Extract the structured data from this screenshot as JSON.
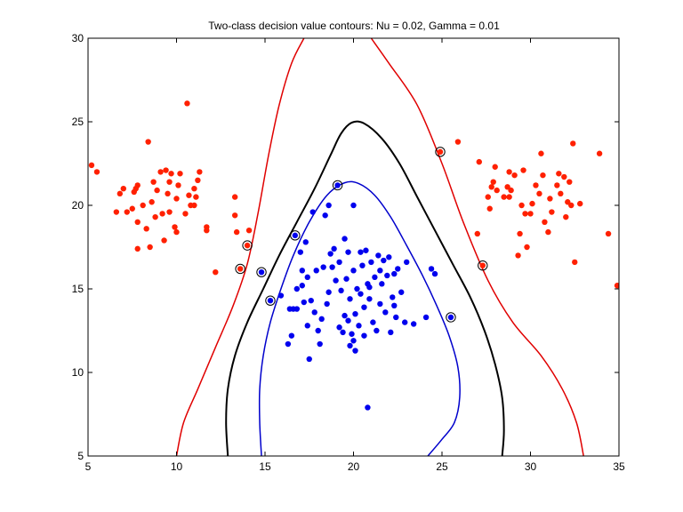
{
  "chart_data": {
    "type": "scatter",
    "title": "Two-class decision value contours: Nu =  0.02, Gamma =  0.01",
    "xlabel": "",
    "ylabel": "",
    "xlim": [
      5,
      35
    ],
    "ylim": [
      5,
      30
    ],
    "x_ticks": [
      5,
      10,
      15,
      20,
      25,
      30,
      35
    ],
    "y_ticks": [
      5,
      10,
      15,
      20,
      25,
      30
    ],
    "grid": false,
    "colors": {
      "class_a": "#ff2000",
      "class_b": "#0000ee",
      "outer_contour": "#e00000",
      "middle_contour": "#000000",
      "inner_contour": "#0000cc",
      "support_vector_ring": "#000000"
    },
    "contours": [
      {
        "level": "outer",
        "color": "#e00000",
        "paths": [
          [
            [
              10.0,
              5.0
            ],
            [
              10.4,
              7.0
            ],
            [
              11.2,
              9.0
            ],
            [
              12.2,
              11.5
            ],
            [
              13.2,
              14.0
            ],
            [
              14.0,
              16.5
            ],
            [
              14.6,
              19.5
            ],
            [
              15.2,
              23.0
            ],
            [
              15.8,
              26.0
            ],
            [
              16.5,
              28.5
            ],
            [
              17.2,
              30.0
            ]
          ],
          [
            [
              33.0,
              5.0
            ],
            [
              32.6,
              7.0
            ],
            [
              31.8,
              9.0
            ],
            [
              30.6,
              11.0
            ],
            [
              29.0,
              13.0
            ],
            [
              27.6,
              15.5
            ],
            [
              26.2,
              19.0
            ],
            [
              25.0,
              22.5
            ],
            [
              23.6,
              26.0
            ],
            [
              22.0,
              28.5
            ],
            [
              21.0,
              30.0
            ]
          ]
        ]
      },
      {
        "level": "middle",
        "color": "#000000",
        "paths": [
          [
            [
              12.9,
              5.0
            ],
            [
              12.8,
              7.0
            ],
            [
              12.9,
              9.0
            ],
            [
              13.3,
              11.0
            ],
            [
              14.0,
              13.0
            ],
            [
              14.9,
              15.0
            ],
            [
              15.8,
              17.0
            ],
            [
              16.8,
              19.0
            ],
            [
              17.8,
              21.0
            ],
            [
              18.7,
              23.0
            ],
            [
              19.3,
              24.3
            ],
            [
              19.9,
              24.95
            ],
            [
              20.6,
              24.9
            ],
            [
              21.6,
              24.0
            ],
            [
              22.6,
              22.5
            ],
            [
              23.6,
              20.5
            ],
            [
              24.6,
              18.5
            ],
            [
              25.6,
              16.5
            ],
            [
              26.6,
              14.5
            ],
            [
              27.4,
              12.5
            ],
            [
              28.0,
              10.5
            ],
            [
              28.4,
              8.5
            ],
            [
              28.5,
              6.5
            ],
            [
              28.4,
              5.0
            ]
          ]
        ]
      },
      {
        "level": "inner",
        "color": "#0000cc",
        "paths": [
          [
            [
              14.8,
              5.0
            ],
            [
              14.7,
              7.0
            ],
            [
              14.7,
              9.0
            ],
            [
              14.9,
              11.0
            ],
            [
              15.3,
              13.0
            ],
            [
              15.9,
              15.0
            ],
            [
              16.6,
              17.0
            ],
            [
              17.5,
              19.0
            ],
            [
              18.5,
              20.6
            ],
            [
              19.5,
              21.35
            ],
            [
              20.3,
              21.3
            ],
            [
              21.2,
              20.6
            ],
            [
              22.1,
              19.3
            ],
            [
              23.0,
              17.6
            ],
            [
              23.9,
              15.8
            ],
            [
              24.7,
              14.0
            ],
            [
              25.4,
              12.2
            ],
            [
              25.9,
              10.3
            ],
            [
              26.0,
              8.5
            ],
            [
              25.7,
              7.0
            ],
            [
              25.0,
              6.0
            ],
            [
              24.2,
              5.0
            ]
          ]
        ]
      }
    ],
    "series": [
      {
        "color": "#ff2000",
        "points": [
          [
            5.2,
            22.4
          ],
          [
            5.5,
            22.0
          ],
          [
            6.6,
            19.6
          ],
          [
            6.8,
            20.7
          ],
          [
            7.0,
            21.0
          ],
          [
            7.2,
            19.6
          ],
          [
            7.5,
            19.8
          ],
          [
            7.6,
            20.8
          ],
          [
            7.7,
            21.0
          ],
          [
            7.8,
            21.2
          ],
          [
            7.8,
            19.0
          ],
          [
            7.8,
            17.4
          ],
          [
            8.1,
            20.0
          ],
          [
            8.3,
            18.6
          ],
          [
            8.4,
            23.8
          ],
          [
            8.5,
            17.5
          ],
          [
            8.6,
            20.2
          ],
          [
            8.7,
            21.4
          ],
          [
            8.8,
            19.3
          ],
          [
            8.9,
            20.9
          ],
          [
            9.1,
            22.0
          ],
          [
            9.2,
            19.5
          ],
          [
            9.3,
            17.9
          ],
          [
            9.4,
            22.1
          ],
          [
            9.5,
            20.7
          ],
          [
            9.6,
            21.4
          ],
          [
            9.6,
            19.6
          ],
          [
            9.7,
            21.9
          ],
          [
            9.9,
            18.7
          ],
          [
            10.0,
            18.4
          ],
          [
            10.0,
            20.4
          ],
          [
            10.1,
            21.2
          ],
          [
            10.2,
            21.9
          ],
          [
            10.5,
            19.5
          ],
          [
            10.6,
            26.1
          ],
          [
            10.7,
            20.6
          ],
          [
            10.8,
            20.0
          ],
          [
            11.0,
            20.0
          ],
          [
            11.0,
            21.0
          ],
          [
            11.1,
            20.5
          ],
          [
            11.2,
            21.5
          ],
          [
            11.3,
            22.0
          ],
          [
            11.7,
            18.5
          ],
          [
            11.7,
            18.7
          ],
          [
            12.2,
            16.0
          ],
          [
            13.3,
            20.5
          ],
          [
            13.3,
            19.4
          ],
          [
            13.4,
            18.4
          ],
          [
            13.6,
            16.2
          ],
          [
            14.0,
            17.6
          ],
          [
            14.1,
            18.5
          ],
          [
            24.9,
            23.2
          ],
          [
            25.9,
            23.8
          ],
          [
            27.0,
            18.3
          ],
          [
            27.1,
            22.6
          ],
          [
            27.3,
            16.4
          ],
          [
            27.6,
            20.5
          ],
          [
            27.7,
            19.8
          ],
          [
            27.8,
            21.1
          ],
          [
            27.9,
            21.4
          ],
          [
            28.0,
            22.3
          ],
          [
            28.1,
            20.9
          ],
          [
            28.5,
            20.5
          ],
          [
            28.7,
            21.1
          ],
          [
            28.8,
            22.0
          ],
          [
            28.8,
            20.5
          ],
          [
            28.9,
            20.9
          ],
          [
            29.1,
            21.8
          ],
          [
            29.3,
            17.0
          ],
          [
            29.4,
            18.3
          ],
          [
            29.5,
            20.0
          ],
          [
            29.6,
            22.1
          ],
          [
            29.7,
            19.5
          ],
          [
            29.8,
            17.5
          ],
          [
            30.0,
            19.5
          ],
          [
            30.1,
            20.1
          ],
          [
            30.3,
            21.2
          ],
          [
            30.5,
            20.7
          ],
          [
            30.6,
            23.1
          ],
          [
            30.7,
            21.8
          ],
          [
            30.8,
            19.0
          ],
          [
            31.0,
            18.4
          ],
          [
            31.1,
            20.4
          ],
          [
            31.2,
            19.6
          ],
          [
            31.5,
            21.2
          ],
          [
            31.6,
            21.9
          ],
          [
            31.7,
            20.7
          ],
          [
            31.9,
            21.7
          ],
          [
            32.0,
            19.3
          ],
          [
            32.1,
            20.2
          ],
          [
            32.2,
            21.4
          ],
          [
            32.3,
            20.0
          ],
          [
            32.4,
            23.7
          ],
          [
            32.5,
            16.6
          ],
          [
            32.8,
            20.1
          ],
          [
            33.9,
            23.1
          ],
          [
            34.4,
            18.3
          ],
          [
            34.9,
            15.2
          ]
        ]
      },
      {
        "color": "#0000ee",
        "points": [
          [
            14.8,
            16.0
          ],
          [
            15.3,
            14.3
          ],
          [
            15.9,
            14.6
          ],
          [
            16.3,
            11.7
          ],
          [
            16.5,
            12.2
          ],
          [
            16.6,
            13.8
          ],
          [
            16.7,
            18.2
          ],
          [
            16.8,
            13.8
          ],
          [
            17.0,
            17.2
          ],
          [
            17.1,
            16.1
          ],
          [
            17.1,
            15.2
          ],
          [
            17.2,
            14.2
          ],
          [
            17.3,
            17.8
          ],
          [
            17.4,
            12.8
          ],
          [
            17.4,
            15.7
          ],
          [
            17.5,
            10.8
          ],
          [
            17.6,
            14.3
          ],
          [
            17.7,
            19.6
          ],
          [
            17.8,
            13.6
          ],
          [
            18.0,
            12.5
          ],
          [
            18.2,
            13.2
          ],
          [
            18.3,
            16.3
          ],
          [
            18.4,
            19.4
          ],
          [
            18.5,
            14.1
          ],
          [
            18.6,
            20.0
          ],
          [
            18.7,
            17.1
          ],
          [
            18.8,
            16.3
          ],
          [
            18.9,
            17.4
          ],
          [
            19.0,
            15.5
          ],
          [
            19.1,
            21.2
          ],
          [
            19.2,
            16.6
          ],
          [
            19.3,
            14.9
          ],
          [
            19.4,
            12.4
          ],
          [
            19.5,
            13.4
          ],
          [
            19.6,
            15.6
          ],
          [
            19.7,
            17.2
          ],
          [
            19.8,
            14.4
          ],
          [
            19.8,
            11.6
          ],
          [
            19.9,
            12.3
          ],
          [
            20.0,
            20.0
          ],
          [
            20.0,
            16.1
          ],
          [
            20.1,
            13.5
          ],
          [
            20.1,
            11.3
          ],
          [
            20.2,
            15.0
          ],
          [
            20.3,
            12.8
          ],
          [
            20.4,
            14.7
          ],
          [
            20.5,
            16.4
          ],
          [
            20.6,
            13.9
          ],
          [
            20.7,
            17.3
          ],
          [
            20.8,
            15.3
          ],
          [
            20.8,
            7.9
          ],
          [
            20.9,
            14.4
          ],
          [
            21.0,
            16.6
          ],
          [
            21.1,
            13.0
          ],
          [
            21.2,
            15.7
          ],
          [
            21.3,
            12.5
          ],
          [
            21.4,
            17.0
          ],
          [
            21.5,
            14.1
          ],
          [
            21.6,
            15.3
          ],
          [
            21.7,
            16.7
          ],
          [
            21.8,
            13.6
          ],
          [
            21.9,
            15.8
          ],
          [
            22.0,
            16.9
          ],
          [
            22.1,
            12.4
          ],
          [
            22.2,
            14.5
          ],
          [
            22.3,
            15.9
          ],
          [
            22.4,
            13.3
          ],
          [
            22.5,
            16.2
          ],
          [
            22.7,
            14.8
          ],
          [
            22.9,
            13.0
          ],
          [
            23.0,
            16.6
          ],
          [
            23.4,
            12.9
          ],
          [
            24.1,
            13.3
          ],
          [
            24.4,
            16.2
          ],
          [
            24.6,
            15.9
          ],
          [
            25.5,
            13.3
          ],
          [
            16.8,
            15.0
          ],
          [
            17.9,
            16.1
          ],
          [
            18.1,
            11.7
          ],
          [
            18.6,
            14.8
          ],
          [
            19.2,
            12.7
          ],
          [
            19.7,
            13.1
          ],
          [
            20.0,
            11.9
          ],
          [
            20.4,
            17.2
          ],
          [
            20.9,
            15.1
          ],
          [
            21.5,
            16.1
          ],
          [
            22.3,
            14.0
          ],
          [
            16.4,
            13.8
          ],
          [
            19.5,
            18.0
          ],
          [
            20.6,
            12.2
          ]
        ]
      }
    ],
    "support_vectors": [
      [
        13.6,
        16.2
      ],
      [
        14.0,
        17.6
      ],
      [
        14.8,
        16.0
      ],
      [
        15.3,
        14.3
      ],
      [
        16.7,
        18.2
      ],
      [
        19.1,
        21.2
      ],
      [
        24.9,
        23.2
      ],
      [
        25.5,
        13.3
      ],
      [
        27.3,
        16.4
      ]
    ]
  }
}
